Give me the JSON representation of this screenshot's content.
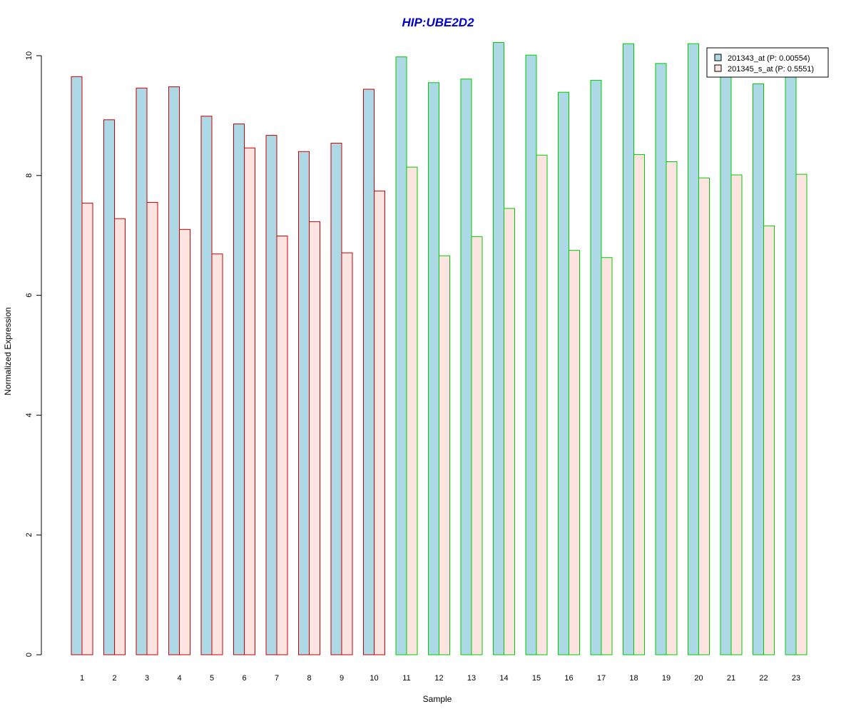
{
  "chart_data": {
    "type": "bar",
    "title": "HIP:UBE2D2",
    "xlabel": "Sample",
    "ylabel": "Normalized Expression",
    "ylim": [
      0,
      10.2
    ],
    "yticks": [
      0,
      2,
      4,
      6,
      8,
      10
    ],
    "categories": [
      "1",
      "2",
      "3",
      "4",
      "5",
      "6",
      "7",
      "8",
      "9",
      "10",
      "11",
      "12",
      "13",
      "14",
      "15",
      "16",
      "17",
      "18",
      "19",
      "20",
      "21",
      "22",
      "23"
    ],
    "series": [
      {
        "name": "201343_at (P: 0.00554)",
        "fill": "#add8e6",
        "values": [
          9.65,
          8.93,
          9.46,
          9.48,
          8.99,
          8.86,
          8.67,
          8.4,
          8.54,
          9.44,
          9.98,
          9.55,
          9.61,
          10.22,
          10.01,
          9.39,
          9.59,
          10.2,
          9.87,
          10.2,
          9.65,
          9.53,
          10.13
        ]
      },
      {
        "name": "201345_s_at (P: 0.5551)",
        "fill": "#fde4e0",
        "values": [
          7.54,
          7.28,
          7.55,
          7.1,
          6.69,
          8.46,
          6.99,
          7.23,
          6.71,
          7.74,
          8.14,
          6.66,
          6.98,
          7.45,
          8.34,
          6.75,
          6.63,
          8.35,
          8.23,
          7.96,
          8.01,
          7.16,
          8.02
        ]
      }
    ],
    "groups": [
      {
        "samples": [
          "1",
          "2",
          "3",
          "4",
          "5",
          "6",
          "7",
          "8",
          "9",
          "10"
        ],
        "border": "#cc0000"
      },
      {
        "samples": [
          "11",
          "12",
          "13",
          "14",
          "15",
          "16",
          "17",
          "18",
          "19",
          "20",
          "21",
          "22",
          "23"
        ],
        "border": "#00cc00"
      }
    ],
    "legend": "top-right"
  }
}
